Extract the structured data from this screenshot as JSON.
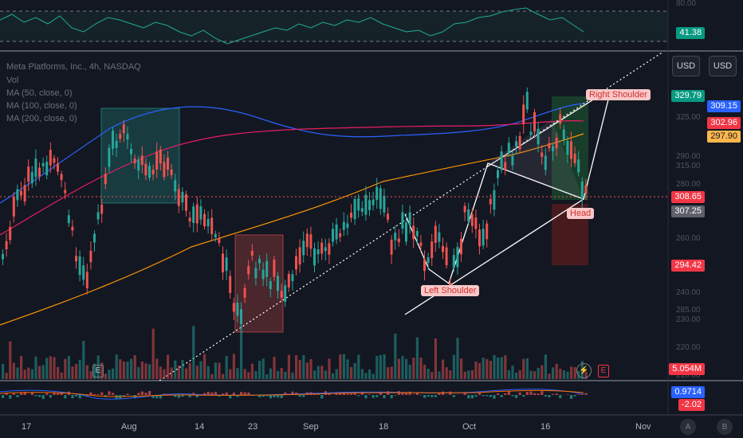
{
  "chart_data": {
    "type": "candlestick",
    "symbol_line": "Meta Platforms, Inc., 4h, NASDAQ",
    "legend": [
      "Vol",
      "MA (50, close, 0)",
      "MA (100, close, 0)",
      "MA (200, close, 0)"
    ],
    "currency_buttons": [
      "USD",
      "USD"
    ],
    "x_tick_labels": [
      "17",
      "Aug",
      "14",
      "23",
      "Sep",
      "18",
      "Oct",
      "16",
      "Nov"
    ],
    "price_axis_ticks": [
      "325.00",
      "315.00",
      "290.00",
      "280.00",
      "270.00",
      "260.00",
      "250.00",
      "240.00",
      "285.00",
      "230.00",
      "220.00",
      "210.00"
    ],
    "rsi_axis_ticks": [
      "80.00"
    ],
    "price_tags": {
      "target": "329.79",
      "ma_blue": "309.15",
      "ma_red": "302.96",
      "ma_orange": "297.90",
      "last": "308.65",
      "prev": "307.25",
      "stop": "294.42",
      "volume": "5.054M",
      "rsi": "41.38",
      "macd": "0.9714",
      "macd_signal": "-2.02"
    },
    "annotations": [
      "Right Shoulder",
      "Head",
      "Left Shoulder"
    ],
    "bottom_buttons": [
      "A",
      "B"
    ],
    "colors": {
      "up": "#26a69a",
      "down": "#ef5350",
      "ma50": "#2962ff",
      "ma100": "#e91e63",
      "ma200": "#ff9800",
      "rsi": "#22ab94"
    }
  }
}
